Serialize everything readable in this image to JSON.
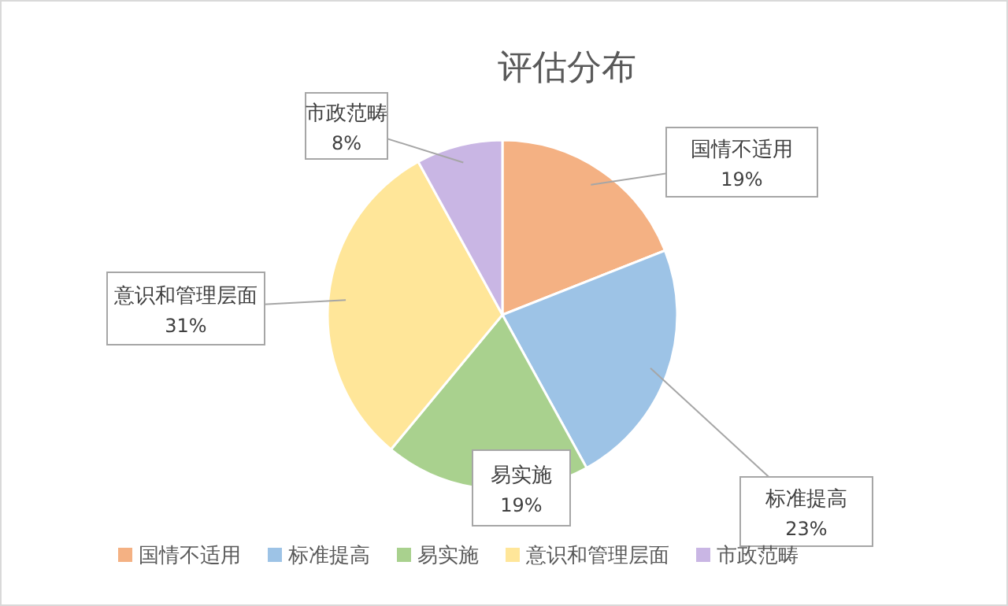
{
  "chart_data": {
    "type": "pie",
    "title": "评估分布",
    "categories": [
      "国情不适用",
      "标准提高",
      "易实施",
      "意识和管理层面",
      "市政范畴"
    ],
    "values": [
      19,
      23,
      19,
      31,
      8
    ],
    "colors": [
      "#f4b183",
      "#9dc3e6",
      "#a9d18e",
      "#ffe699",
      "#c9b6e4"
    ],
    "value_labels": [
      "19%",
      "23%",
      "19%",
      "31%",
      "8%"
    ],
    "legend": "bottom"
  }
}
